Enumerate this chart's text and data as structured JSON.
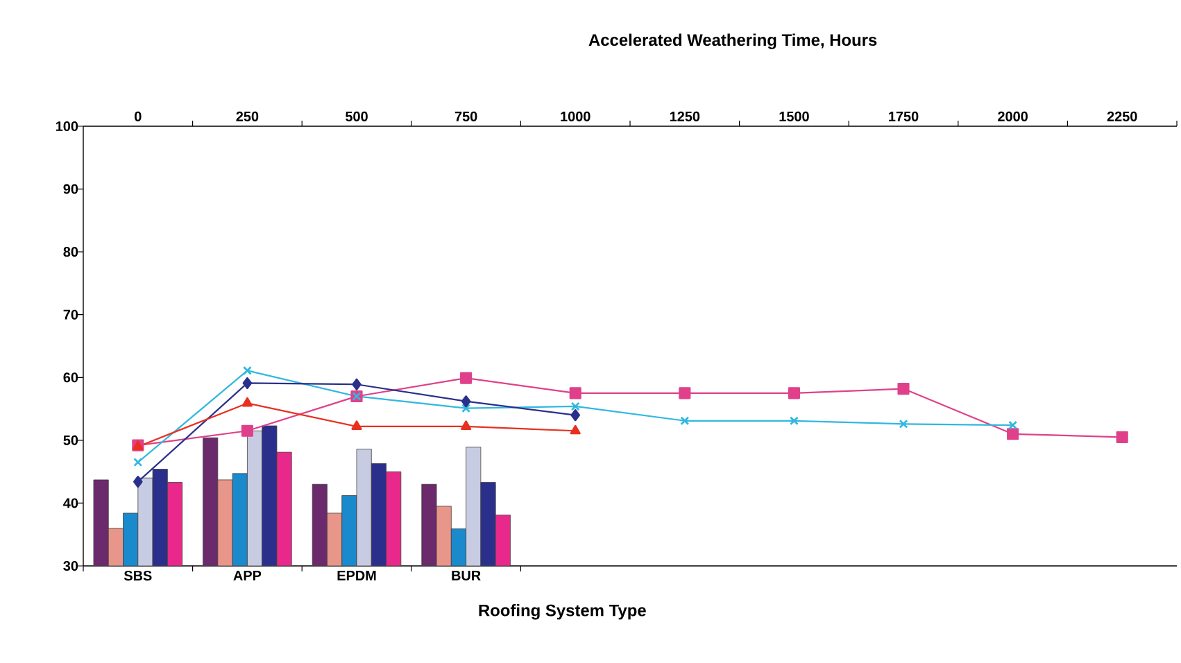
{
  "chart_data": {
    "type": "bar",
    "x2label": "Accelerated Weathering Time, Hours",
    "xlabel": "Roofing System Type",
    "categories": [
      "SBS",
      "APP",
      "EPDM",
      "BUR",
      null,
      null,
      null,
      null,
      null,
      null
    ],
    "ylim": [
      30,
      100
    ],
    "yticks": [
      30,
      40,
      50,
      60,
      70,
      80,
      90,
      100
    ],
    "x2lim": [
      -125,
      2375
    ],
    "x2ticks": [
      0,
      250,
      500,
      750,
      1000,
      1250,
      1500,
      1750,
      2000,
      2250,
      {
        "value": 125,
        "label": null
      },
      {
        "value": 375,
        "label": null
      },
      {
        "value": 625,
        "label": null
      },
      {
        "value": 875,
        "label": null
      },
      {
        "value": 1125,
        "label": null
      },
      {
        "value": 1375,
        "label": null
      },
      {
        "value": 1625,
        "label": null
      },
      {
        "value": 1875,
        "label": null
      },
      {
        "value": 2125,
        "label": null
      },
      {
        "value": 2375,
        "label": null
      }
    ],
    "series": [
      {
        "type": "bar",
        "color": "#6b2a6b",
        "values": [
          43.7,
          50.4,
          43.0,
          43.0,
          null,
          null,
          null,
          null,
          null,
          null
        ]
      },
      {
        "type": "bar",
        "color": "#e8968a",
        "values": [
          36.0,
          43.7,
          38.4,
          39.5,
          null,
          null,
          null,
          null,
          null,
          null
        ]
      },
      {
        "type": "bar",
        "color": "#1a8acc",
        "values": [
          38.4,
          44.7,
          41.2,
          35.9,
          null,
          null,
          null,
          null,
          null,
          null
        ]
      },
      {
        "type": "bar",
        "color": "#c8cce2",
        "values": [
          44.0,
          51.5,
          48.6,
          48.9,
          null,
          null,
          null,
          null,
          null,
          null
        ]
      },
      {
        "type": "bar",
        "color": "#2b2f8c",
        "values": [
          45.4,
          52.3,
          46.3,
          43.3,
          null,
          null,
          null,
          null,
          null,
          null
        ]
      },
      {
        "type": "bar",
        "color": "#e8288a",
        "values": [
          43.3,
          48.1,
          45.0,
          38.1,
          null,
          null,
          null,
          null,
          null,
          null
        ]
      },
      {
        "type": "line",
        "axis": "x2",
        "marker": "square",
        "color": "#e0408a",
        "x": [
          0,
          250,
          500,
          750,
          1000,
          1250,
          1500,
          1750,
          2000,
          2250
        ],
        "values": [
          49.2,
          51.5,
          57.0,
          59.9,
          57.5,
          57.5,
          57.5,
          58.2,
          51.0,
          50.5
        ]
      },
      {
        "type": "line",
        "axis": "x2",
        "marker": "cross",
        "color": "#30b8e0",
        "x": [
          0,
          250,
          500,
          750,
          1000,
          1250,
          1500,
          1750,
          2000
        ],
        "values": [
          46.5,
          61.1,
          57.0,
          55.1,
          55.4,
          53.1,
          53.1,
          52.6,
          52.4
        ]
      },
      {
        "type": "line",
        "axis": "x2",
        "marker": "diamond",
        "color": "#2b2f8c",
        "x": [
          0,
          250,
          500,
          750,
          1000
        ],
        "values": [
          43.4,
          59.1,
          58.9,
          56.2,
          54.0
        ]
      },
      {
        "type": "line",
        "axis": "x2",
        "marker": "triangle",
        "color": "#e83020",
        "x": [
          0,
          250,
          500,
          750,
          1000
        ],
        "values": [
          49.0,
          55.9,
          52.2,
          52.2,
          51.5
        ]
      }
    ]
  }
}
